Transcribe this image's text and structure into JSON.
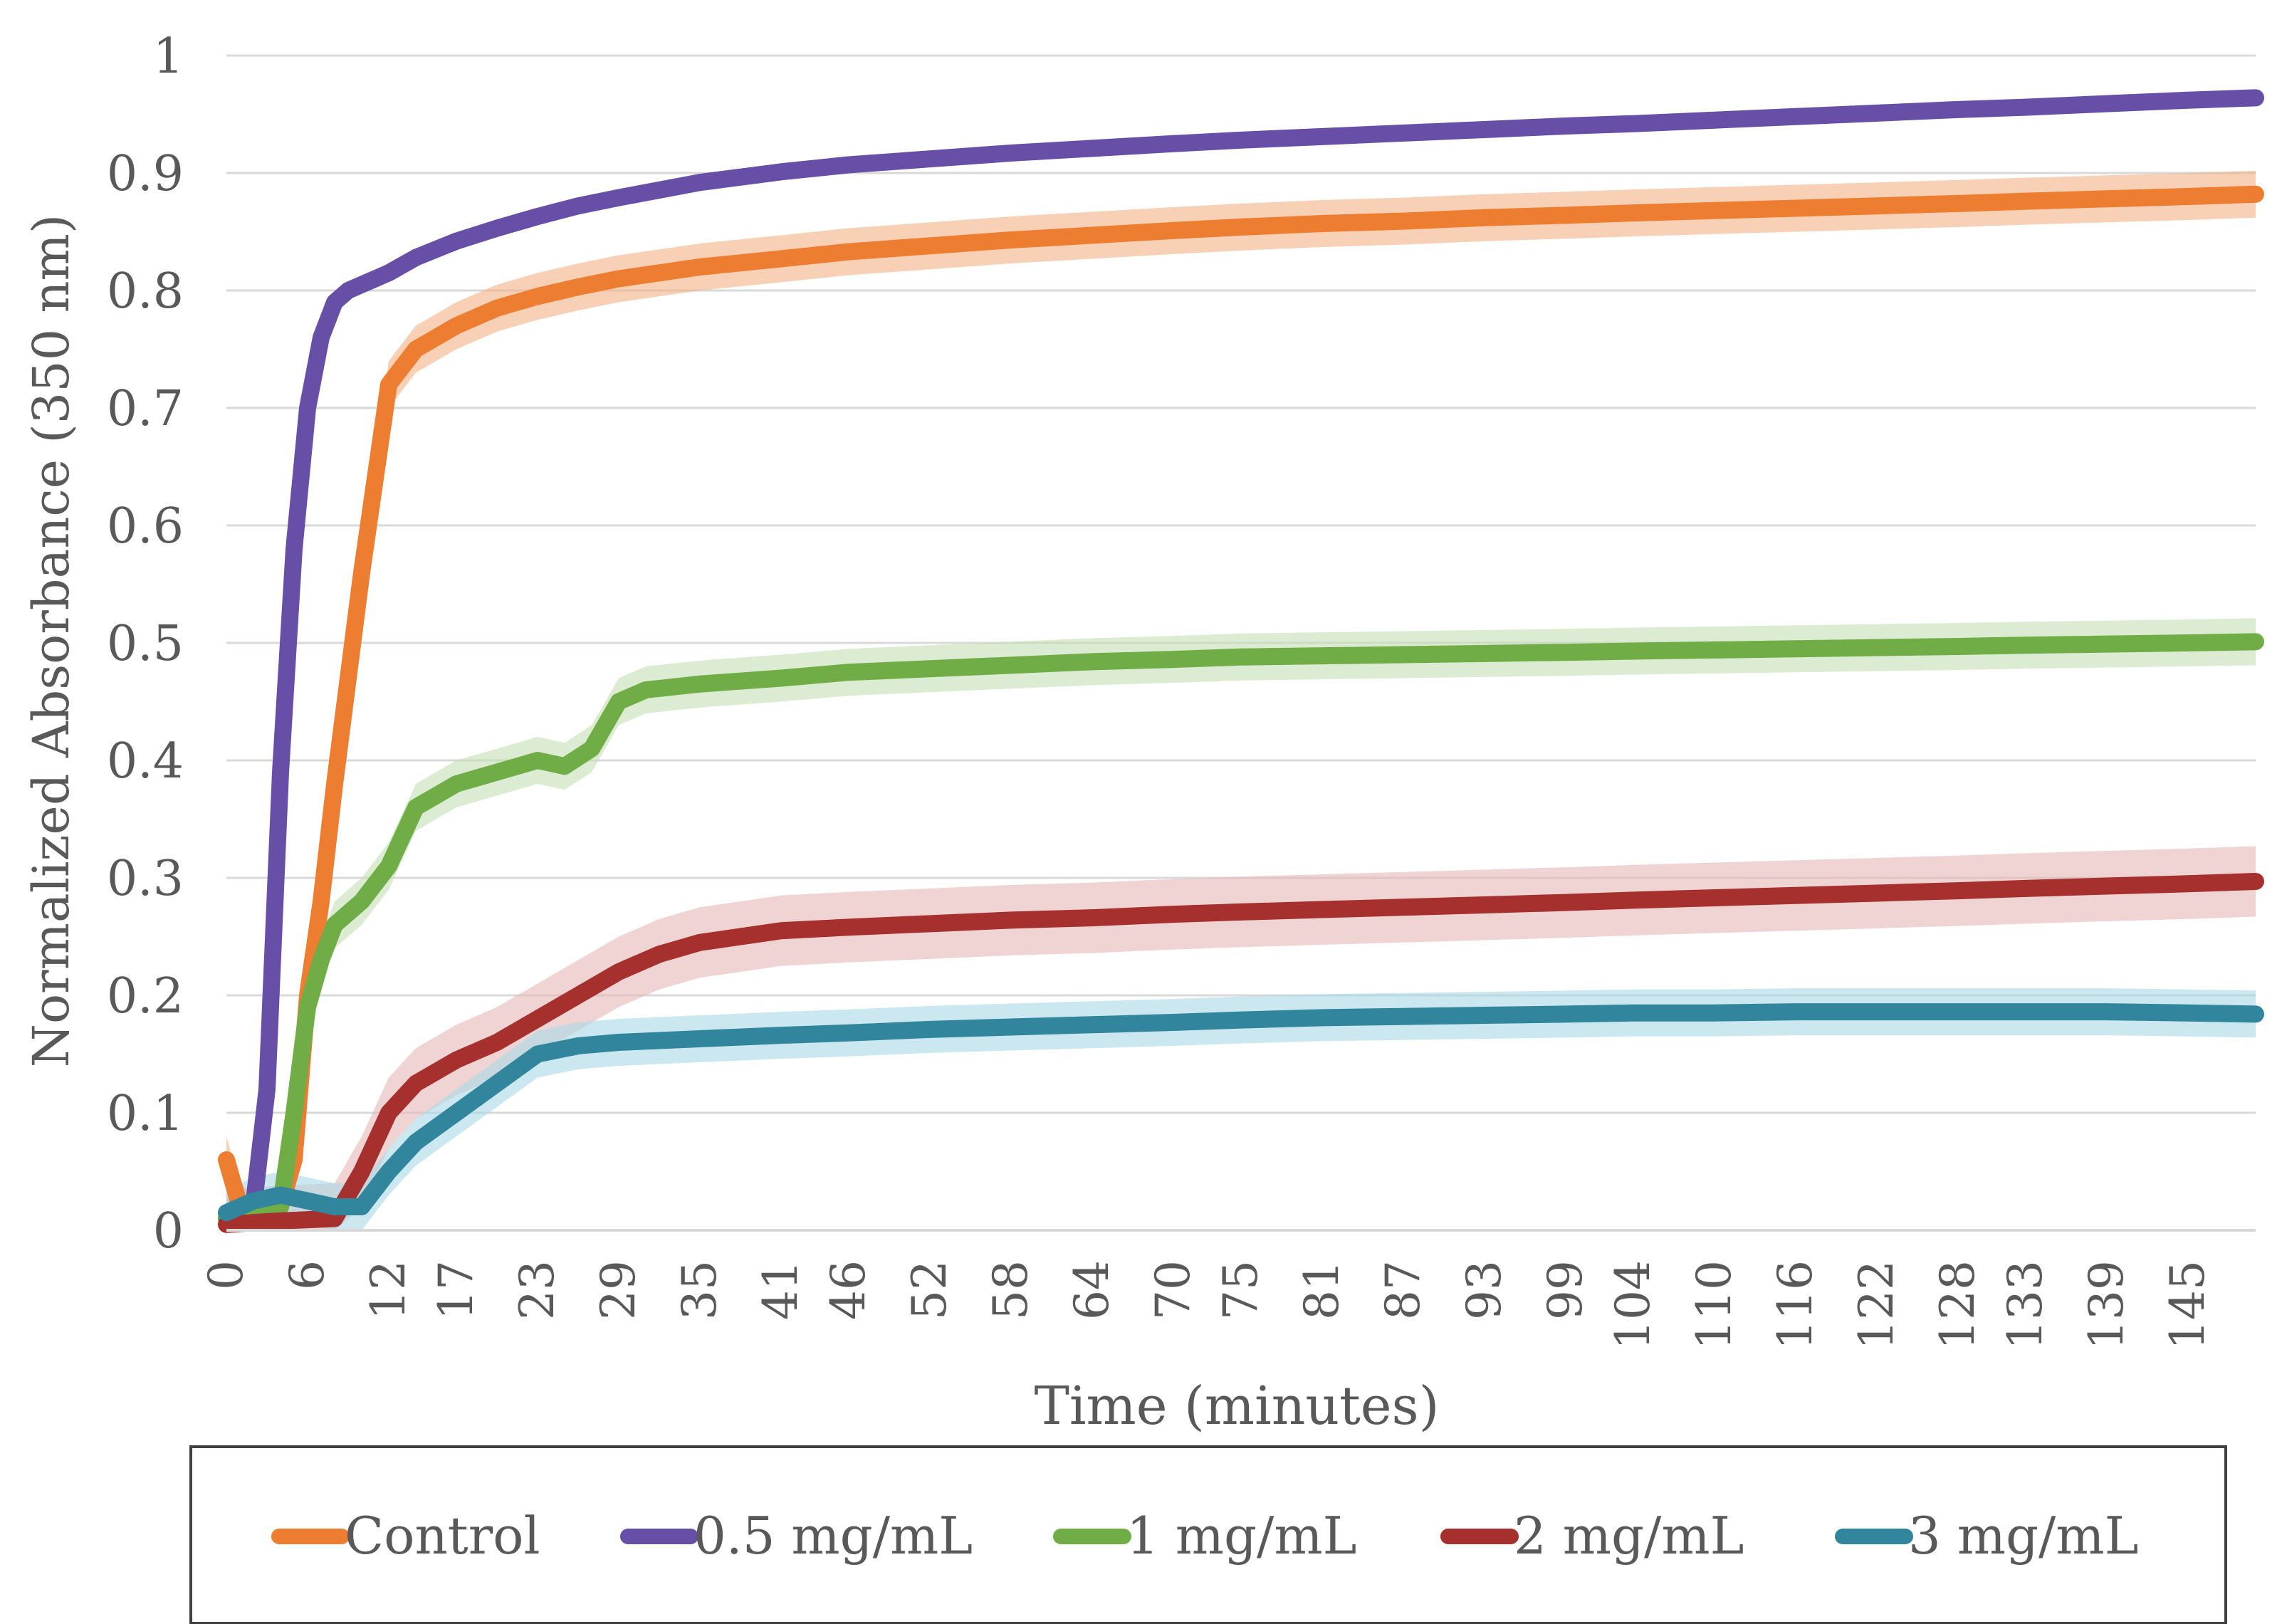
{
  "chart_data": {
    "type": "line",
    "title": "",
    "xlabel": "Time (minutes)",
    "ylabel": "Normalized Absorbance (350 nm)",
    "xlim": [
      0,
      150
    ],
    "ylim": [
      0,
      1
    ],
    "grid": true,
    "legend_position": "bottom",
    "x_tick_labels": [
      "0",
      "6",
      "12",
      "17",
      "23",
      "29",
      "35",
      "41",
      "46",
      "52",
      "58",
      "64",
      "70",
      "75",
      "81",
      "87",
      "93",
      "99",
      "104",
      "110",
      "116",
      "122",
      "128",
      "133",
      "139",
      "145"
    ],
    "y_tick_labels": [
      "0",
      "0.1",
      "0.2",
      "0.3",
      "0.4",
      "0.5",
      "0.6",
      "0.7",
      "0.8",
      "0.9",
      "1"
    ],
    "series": [
      {
        "name": "Control",
        "color": "#ED7D31",
        "band_color": "#F4B183",
        "band": 0.02,
        "x": [
          0,
          1,
          2,
          3,
          4,
          5,
          6,
          7,
          8,
          9,
          10,
          11,
          12,
          14,
          17,
          20,
          23,
          26,
          29,
          35,
          41,
          46,
          52,
          58,
          64,
          70,
          75,
          81,
          87,
          93,
          99,
          104,
          110,
          116,
          122,
          128,
          133,
          139,
          145,
          150
        ],
        "values": [
          0.06,
          0.02,
          0.01,
          0.01,
          0.02,
          0.06,
          0.2,
          0.28,
          0.38,
          0.47,
          0.56,
          0.64,
          0.72,
          0.75,
          0.77,
          0.785,
          0.795,
          0.803,
          0.81,
          0.82,
          0.827,
          0.833,
          0.838,
          0.843,
          0.847,
          0.851,
          0.854,
          0.857,
          0.859,
          0.862,
          0.864,
          0.866,
          0.868,
          0.87,
          0.872,
          0.874,
          0.876,
          0.878,
          0.88,
          0.882
        ]
      },
      {
        "name": "0.5 mg/mL",
        "color": "#674EA7",
        "band_color": "#B4A7D6",
        "band": 0.006,
        "x": [
          0,
          1,
          2,
          3,
          4,
          5,
          6,
          7,
          8,
          9,
          10,
          12,
          14,
          17,
          20,
          23,
          26,
          29,
          35,
          41,
          46,
          52,
          58,
          64,
          70,
          75,
          81,
          87,
          93,
          99,
          104,
          110,
          116,
          122,
          128,
          133,
          139,
          145,
          150
        ],
        "values": [
          0.01,
          0.01,
          0.02,
          0.12,
          0.39,
          0.58,
          0.7,
          0.76,
          0.79,
          0.8,
          0.805,
          0.815,
          0.828,
          0.842,
          0.853,
          0.863,
          0.872,
          0.879,
          0.892,
          0.901,
          0.907,
          0.912,
          0.917,
          0.921,
          0.925,
          0.928,
          0.931,
          0.934,
          0.937,
          0.94,
          0.942,
          0.945,
          0.948,
          0.951,
          0.954,
          0.956,
          0.959,
          0.962,
          0.964
        ]
      },
      {
        "name": "1 mg/mL",
        "color": "#70AD47",
        "band_color": "#C5E0B4",
        "band": 0.02,
        "x": [
          0,
          2,
          4,
          5,
          6,
          7,
          8,
          10,
          12,
          14,
          17,
          20,
          23,
          25,
          27,
          29,
          31,
          35,
          41,
          46,
          52,
          58,
          64,
          70,
          75,
          81,
          87,
          93,
          99,
          104,
          110,
          116,
          122,
          128,
          133,
          139,
          145,
          150
        ],
        "values": [
          0.01,
          0.01,
          0.02,
          0.1,
          0.19,
          0.23,
          0.26,
          0.28,
          0.31,
          0.36,
          0.38,
          0.39,
          0.4,
          0.395,
          0.41,
          0.45,
          0.46,
          0.465,
          0.47,
          0.475,
          0.478,
          0.481,
          0.484,
          0.486,
          0.488,
          0.489,
          0.49,
          0.491,
          0.492,
          0.493,
          0.494,
          0.495,
          0.496,
          0.497,
          0.498,
          0.499,
          0.5,
          0.501
        ]
      },
      {
        "name": "2 mg/mL",
        "color": "#A5302D",
        "band_color": "#E6B8B7",
        "band": 0.03,
        "x": [
          0,
          4,
          8,
          10,
          12,
          14,
          17,
          20,
          23,
          26,
          29,
          32,
          35,
          41,
          46,
          52,
          58,
          64,
          70,
          75,
          81,
          87,
          93,
          99,
          104,
          110,
          116,
          122,
          128,
          133,
          139,
          145,
          150
        ],
        "values": [
          0.005,
          0.008,
          0.01,
          0.05,
          0.1,
          0.125,
          0.145,
          0.16,
          0.18,
          0.2,
          0.22,
          0.235,
          0.245,
          0.255,
          0.258,
          0.261,
          0.264,
          0.266,
          0.269,
          0.271,
          0.273,
          0.275,
          0.277,
          0.279,
          0.281,
          0.283,
          0.285,
          0.287,
          0.289,
          0.291,
          0.293,
          0.295,
          0.297
        ]
      },
      {
        "name": "3 mg/mL",
        "color": "#31859C",
        "band_color": "#A9D8E6",
        "band": 0.02,
        "x": [
          0,
          2,
          4,
          6,
          8,
          10,
          12,
          14,
          17,
          20,
          23,
          26,
          29,
          35,
          41,
          46,
          52,
          58,
          64,
          70,
          75,
          81,
          87,
          93,
          99,
          104,
          110,
          116,
          122,
          128,
          133,
          139,
          145,
          150
        ],
        "values": [
          0.015,
          0.025,
          0.03,
          0.025,
          0.02,
          0.02,
          0.05,
          0.075,
          0.1,
          0.125,
          0.15,
          0.157,
          0.16,
          0.163,
          0.166,
          0.168,
          0.171,
          0.173,
          0.175,
          0.177,
          0.179,
          0.181,
          0.182,
          0.183,
          0.184,
          0.185,
          0.185,
          0.186,
          0.186,
          0.186,
          0.186,
          0.186,
          0.185,
          0.184
        ]
      }
    ]
  }
}
